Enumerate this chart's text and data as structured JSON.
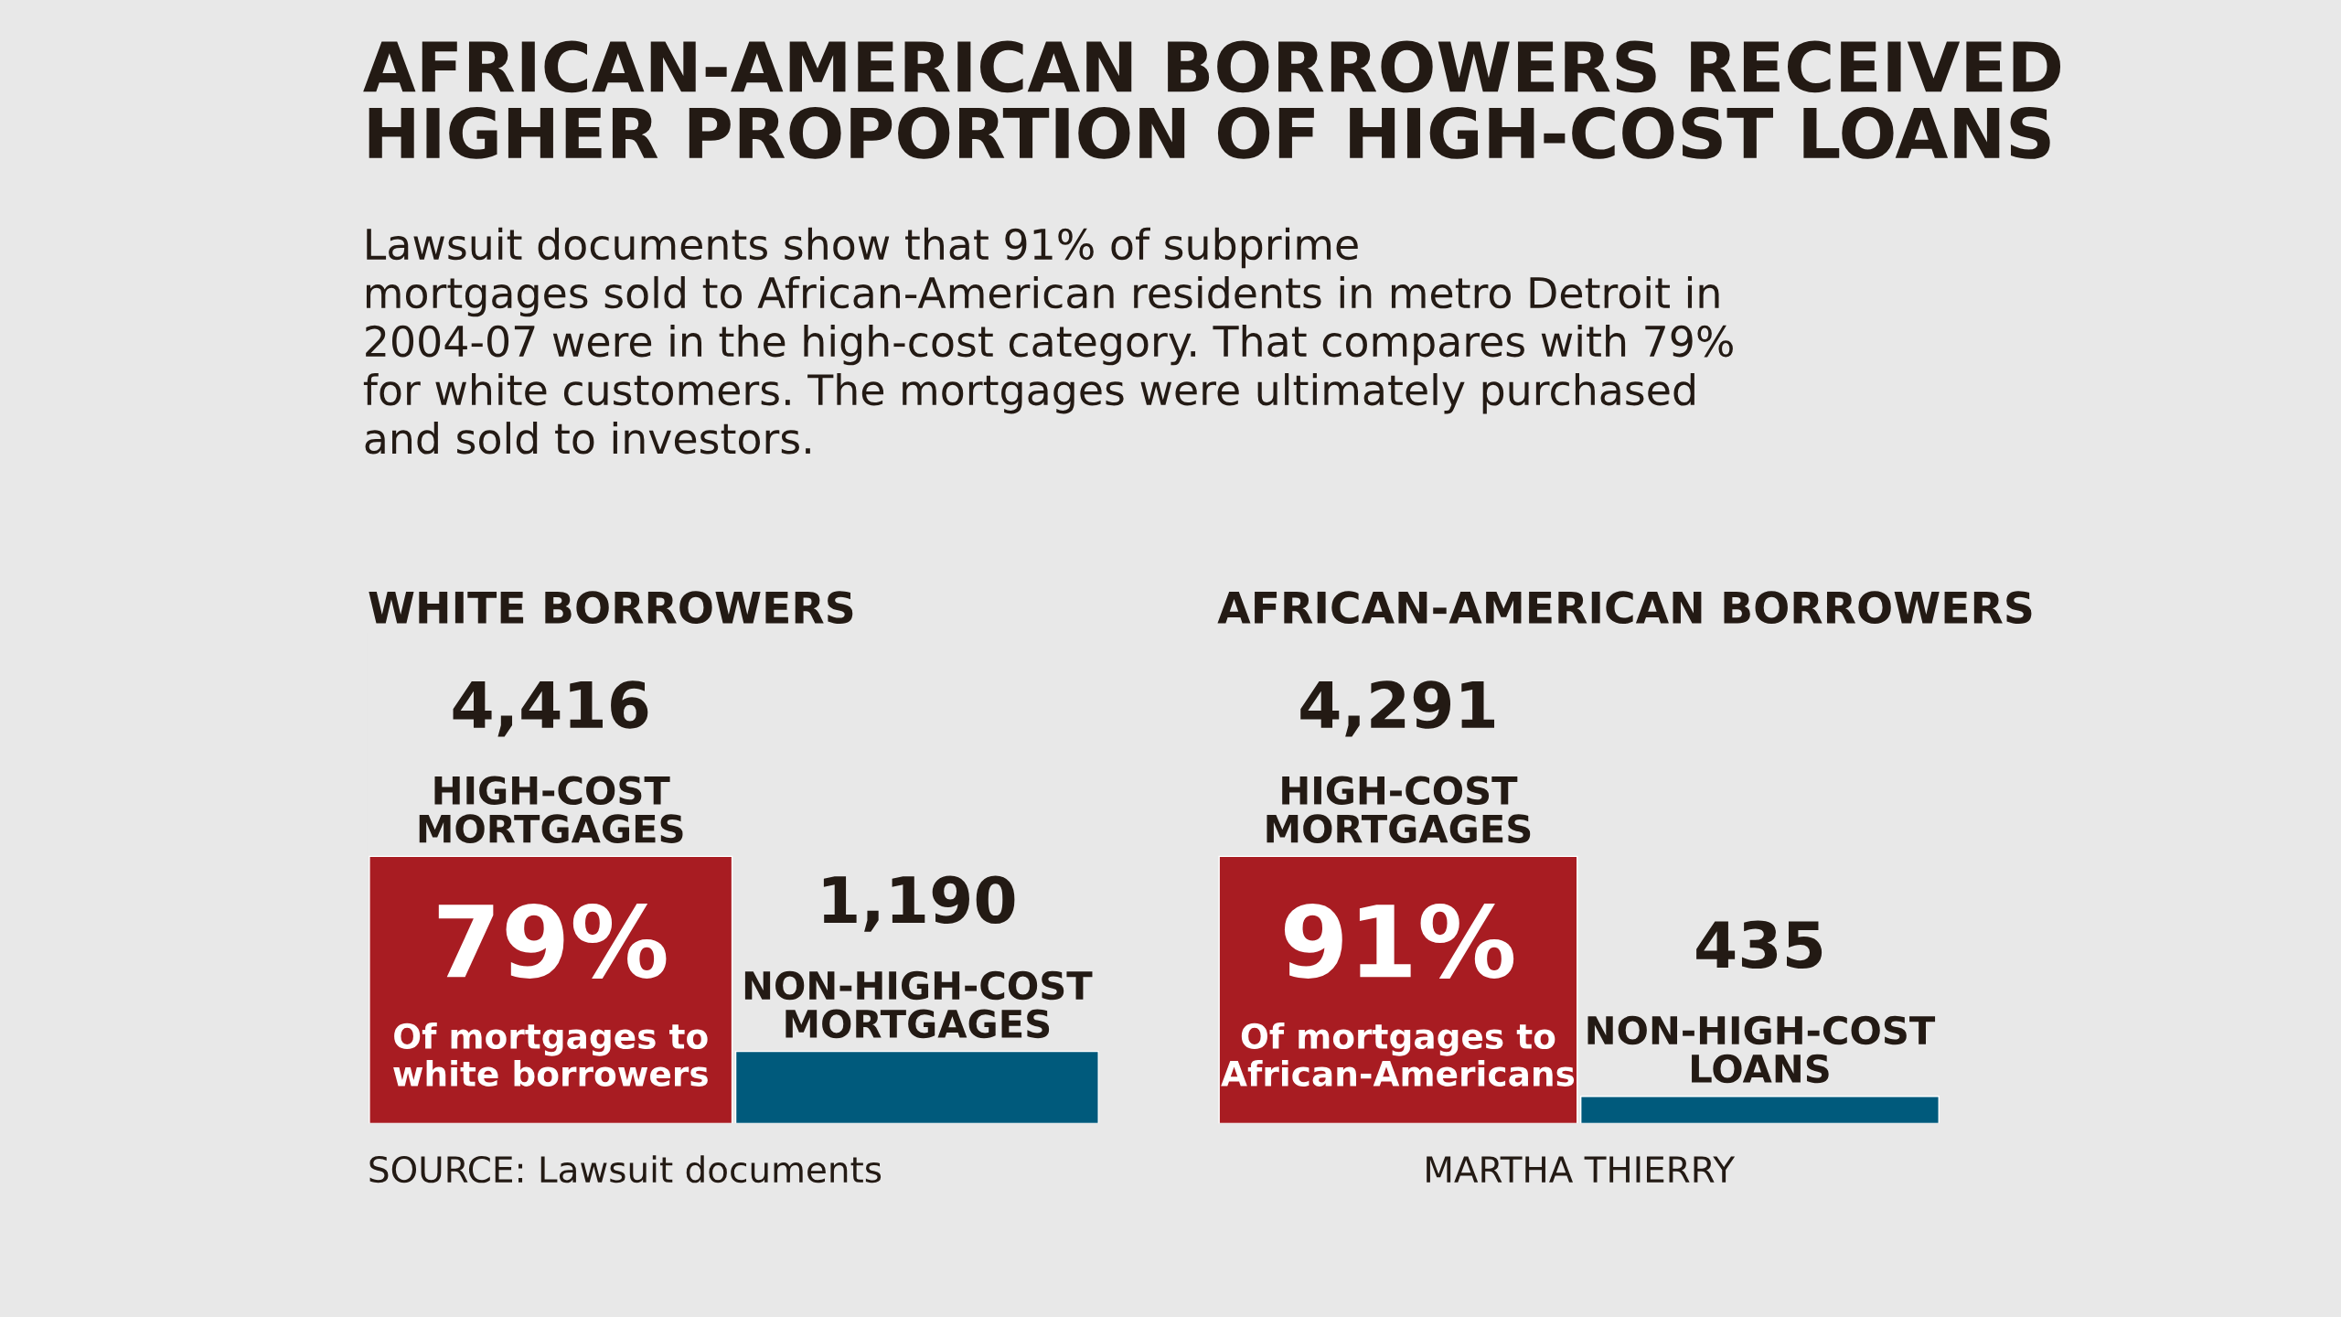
{
  "chart_data": [
    {
      "type": "other",
      "title": "AFRICAN-AMERICAN BORROWERS RECEIVED\nHIGHER PROPORTION OF HIGH-COST LOANS",
      "subtitle": "Lawsuit documents show that 91% of subprime\nmortgages sold to African-American residents in metro Detroit in\n2004-07 were in the high-cost category. That compares with 79%\nfor white customers. The mortgages were ultimately purchased\nand sold to investors."
    },
    {
      "type": "bar",
      "title": "WHITE BORROWERS",
      "categories": [
        "HIGH-COST\nMORTGAGES",
        "NON-HIGH-COST\nMORTGAGES"
      ],
      "values": [
        4416,
        1190
      ],
      "colors": [
        "#a81c22",
        "#005a7c"
      ],
      "value_labels": [
        "4,416",
        "1,190"
      ],
      "annotations": [
        "79%",
        "Of mortgages to\nwhite borrowers",
        "SOURCE: Lawsuit documents"
      ]
    },
    {
      "type": "bar",
      "title": "AFRICAN-AMERICAN BORROWERS",
      "categories": [
        "HIGH-COST\nMORTGAGES",
        "NON-HIGH-COST\nLOANS"
      ],
      "values": [
        4291,
        435
      ],
      "colors": [
        "#a81c22",
        "#005a7c"
      ],
      "value_labels": [
        "4,291",
        "435"
      ],
      "annotations": [
        "91%",
        "Of mortgages to\nAfrican-Americans",
        "MARTHA THIERRY"
      ]
    }
  ]
}
